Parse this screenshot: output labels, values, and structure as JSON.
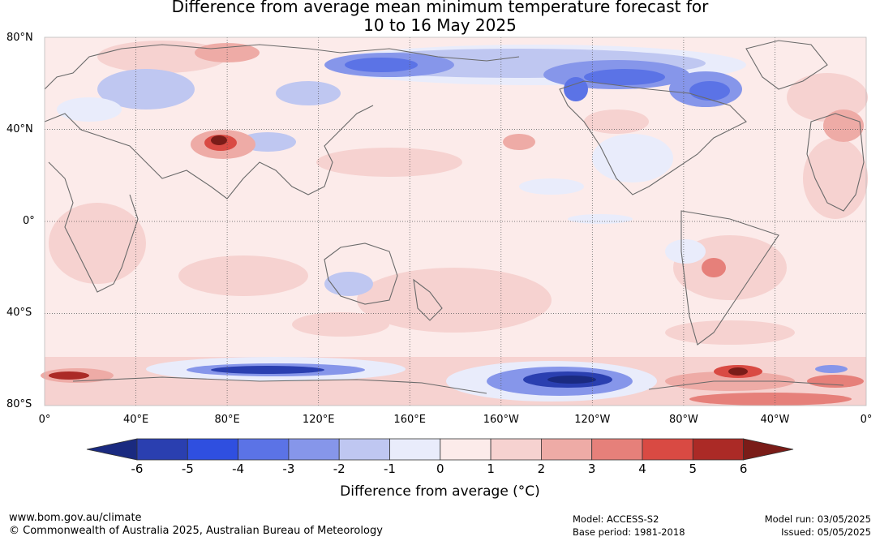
{
  "title_line1": "Difference from average mean minimum temperature forecast for",
  "title_line2": "10 to 16 May 2025",
  "lat_labels": [
    "80°N",
    "40°N",
    "0°",
    "40°S",
    "80°S"
  ],
  "lon_labels": [
    "0°",
    "40°E",
    "80°E",
    "120°E",
    "160°E",
    "160°W",
    "120°W",
    "80°W",
    "40°W",
    "0°"
  ],
  "colorbar": {
    "title": "Difference from average (°C)",
    "ticks": [
      "-6",
      "-5",
      "-4",
      "-3",
      "-2",
      "-1",
      "0",
      "1",
      "2",
      "3",
      "4",
      "5",
      "6"
    ],
    "colors": [
      "#1a2a80",
      "#2a3fb0",
      "#2f4fe0",
      "#5b73e6",
      "#8696ea",
      "#bfc7f1",
      "#e9ecfb",
      "#fcebea",
      "#f6d2d0",
      "#eeaba6",
      "#e6807a",
      "#d94a43",
      "#ab2a26",
      "#7a1c18"
    ]
  },
  "footer": {
    "website": "www.bom.gov.au/climate",
    "copyright": "© Commonwealth of Australia 2025, Australian Bureau of Meteorology",
    "model": "Model: ACCESS-S2",
    "base_period": "Base period: 1981-2018",
    "model_run": "Model run: 03/05/2025",
    "issued": "Issued: 05/05/2025"
  }
}
